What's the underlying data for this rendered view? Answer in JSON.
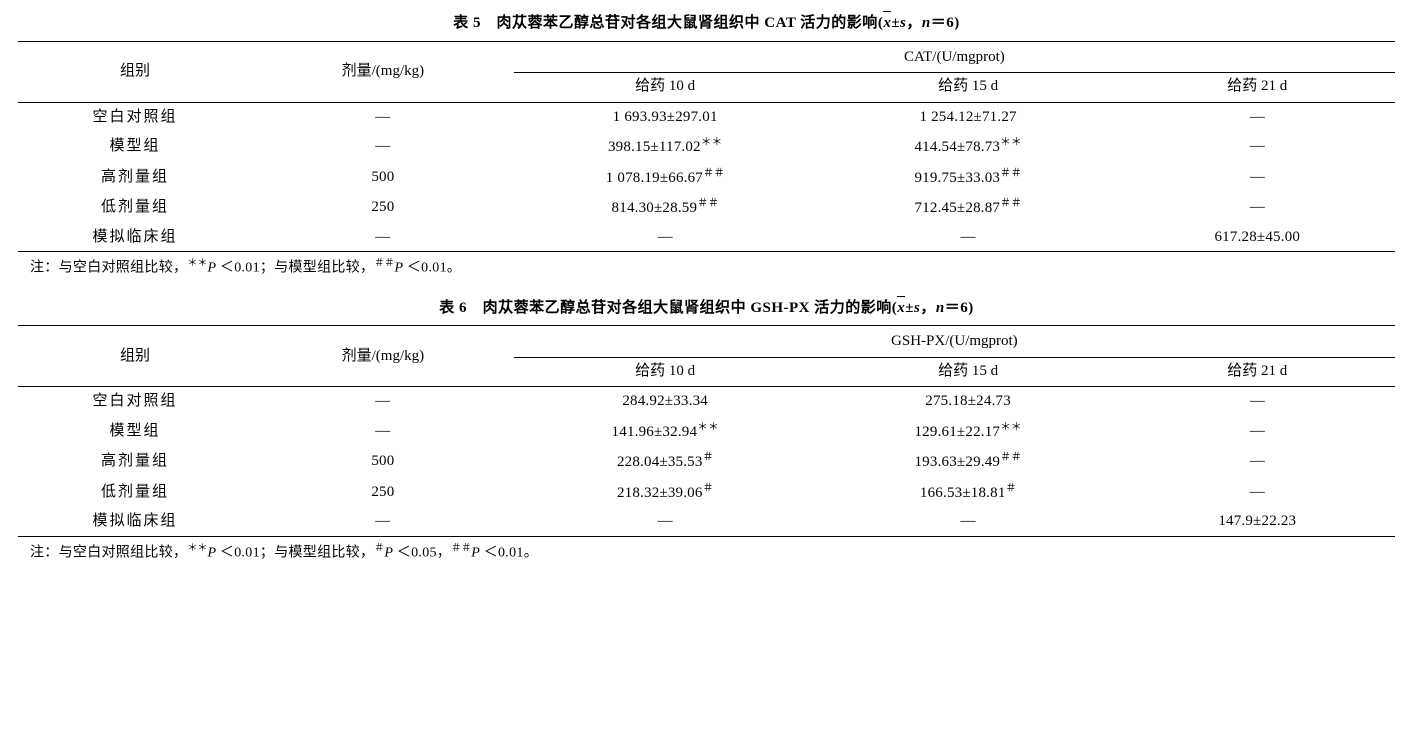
{
  "dash": "—",
  "pm": "±",
  "colors": {
    "text": "#000000",
    "background": "#ffffff",
    "rule": "#000000"
  },
  "typography": {
    "base_font": "SimSun / Times New Roman",
    "base_size_pt": 11,
    "caption_bold": true
  },
  "tables": [
    {
      "id": "table5",
      "caption_prefix": "表 5",
      "caption_main": "肉苁蓉苯乙醇总苷对各组大鼠肾组织中 CAT 活力的影响",
      "caption_stat": "( x̄ ± s，n = 6 )",
      "header_group": "组别",
      "header_dose": "剂量/(mg/kg)",
      "header_measure": "CAT/(U/mgprot)",
      "header_d10": "给药 10 d",
      "header_d15": "给药 15 d",
      "header_d21": "给药 21 d",
      "rows": [
        {
          "group": "空白对照组",
          "dose": "—",
          "d10": "1 693.93±297.01",
          "d10_sup": "",
          "d15": "1 254.12±71.27",
          "d15_sup": "",
          "d21": "—"
        },
        {
          "group": "模型组",
          "dose": "—",
          "d10": "398.15±117.02",
          "d10_sup": "＊＊",
          "d15": "414.54±78.73",
          "d15_sup": "＊＊",
          "d21": "—"
        },
        {
          "group": "高剂量组",
          "dose": "500",
          "d10": "1 078.19±66.67",
          "d10_sup": "＃＃",
          "d15": "919.75±33.03",
          "d15_sup": "＃＃",
          "d21": "—"
        },
        {
          "group": "低剂量组",
          "dose": "250",
          "d10": "814.30±28.59",
          "d10_sup": "＃＃",
          "d15": "712.45±28.87",
          "d15_sup": "＃＃",
          "d21": "—"
        },
        {
          "group": "模拟临床组",
          "dose": "—",
          "d10": "—",
          "d10_sup": "",
          "d15": "—",
          "d15_sup": "",
          "d21": "617.28±45.00"
        }
      ],
      "footnote_pre": "注：与空白对照组比较，",
      "footnote_a_sym": "＊＊",
      "footnote_a_txt": "P ＜0.01",
      "footnote_mid": "；与模型组比较，",
      "footnote_b_sym": "＃＃",
      "footnote_b_txt": "P ＜0.01",
      "footnote_suf": "。"
    },
    {
      "id": "table6",
      "caption_prefix": "表 6",
      "caption_main": "肉苁蓉苯乙醇总苷对各组大鼠肾组织中 GSH-PX 活力的影响",
      "caption_stat": "( x̄ ± s，n = 6 )",
      "header_group": "组别",
      "header_dose": "剂量/(mg/kg)",
      "header_measure": "GSH-PX/(U/mgprot)",
      "header_d10": "给药 10 d",
      "header_d15": "给药 15 d",
      "header_d21": "给药 21 d",
      "rows": [
        {
          "group": "空白对照组",
          "dose": "—",
          "d10": "284.92±33.34",
          "d10_sup": "",
          "d15": "275.18±24.73",
          "d15_sup": "",
          "d21": "—"
        },
        {
          "group": "模型组",
          "dose": "—",
          "d10": "141.96±32.94",
          "d10_sup": "＊＊",
          "d15": "129.61±22.17",
          "d15_sup": "＊＊",
          "d21": "—"
        },
        {
          "group": "高剂量组",
          "dose": "500",
          "d10": "228.04±35.53",
          "d10_sup": "＃",
          "d15": "193.63±29.49",
          "d15_sup": "＃＃",
          "d21": "—"
        },
        {
          "group": "低剂量组",
          "dose": "250",
          "d10": "218.32±39.06",
          "d10_sup": "＃",
          "d15": "166.53±18.81",
          "d15_sup": "＃",
          "d21": "—"
        },
        {
          "group": "模拟临床组",
          "dose": "—",
          "d10": "—",
          "d10_sup": "",
          "d15": "—",
          "d15_sup": "",
          "d21": "147.9±22.23"
        }
      ],
      "footnote_pre": "注：与空白对照组比较，",
      "footnote_a_sym": "＊＊",
      "footnote_a_txt": "P ＜0.01",
      "footnote_mid": "；与模型组比较，",
      "footnote_b_sym": "＃",
      "footnote_b_txt": "P ＜0.05",
      "footnote_c_sep": "，",
      "footnote_c_sym": "＃＃",
      "footnote_c_txt": "P ＜0.01",
      "footnote_suf": "。"
    }
  ]
}
